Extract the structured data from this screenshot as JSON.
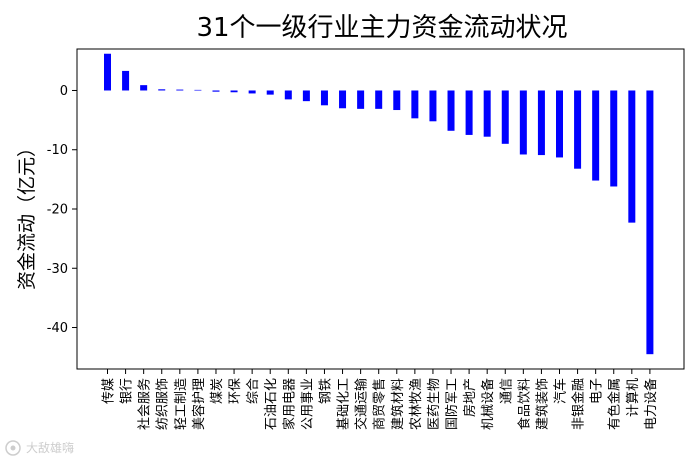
{
  "chart_data": {
    "type": "bar",
    "title": "31个一级行业主力资金流动状况",
    "xlabel": "",
    "ylabel": "资金流动（亿元）",
    "ylim": [
      -47,
      7
    ],
    "yticks": [
      0,
      -10,
      -20,
      -30,
      -40
    ],
    "grid": false,
    "bar_color": "#0000ff",
    "categories": [
      "传媒",
      "银行",
      "社会服务",
      "纺织服饰",
      "轻工制造",
      "美容护理",
      "煤炭",
      "环保",
      "综合",
      "石油石化",
      "家用电器",
      "公用事业",
      "钢铁",
      "基础化工",
      "交通运输",
      "商贸零售",
      "建筑材料",
      "农林牧渔",
      "医药生物",
      "国防军工",
      "房地产",
      "机械设备",
      "通信",
      "食品饮料",
      "建筑装饰",
      "汽车",
      "非银金融",
      "电子",
      "有色金属",
      "计算机",
      "电力设备"
    ],
    "values": [
      6.2,
      3.3,
      0.9,
      0.2,
      0.15,
      0.1,
      -0.2,
      -0.3,
      -0.5,
      -0.7,
      -1.5,
      -1.8,
      -2.5,
      -3.0,
      -3.1,
      -3.1,
      -3.3,
      -4.7,
      -5.2,
      -6.8,
      -7.5,
      -7.8,
      -9.0,
      -10.8,
      -10.9,
      -11.3,
      -13.2,
      -15.2,
      -16.2,
      -22.3,
      -44.5
    ]
  },
  "watermark": {
    "icon": "camera-lens-icon",
    "text": "大敌雄嗨"
  }
}
